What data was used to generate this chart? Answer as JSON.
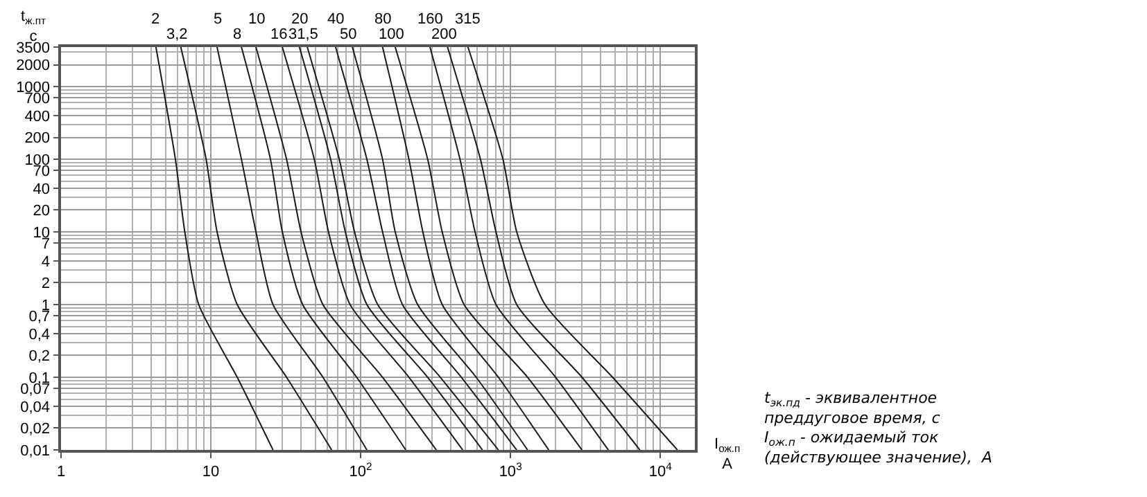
{
  "chart_data": {
    "type": "line",
    "xlabel": "I$_{ож.п}$ A",
    "ylabel": "t$_{ж.пт}$ с",
    "annotations": [
      "t$_{эк.пд}$ - эквивалентное преддуговое время, с",
      "I$_{ож.п}$ - ожидаемый ток (действующее значение),  A"
    ],
    "log": "xy",
    "grid": true,
    "legend": false,
    "marker": "none",
    "line_style": "solid",
    "xlim": [
      1,
      17000
    ],
    "xticks": [
      1,
      10,
      {
        "value": 100,
        "label": "10$^{2}$"
      },
      {
        "value": 1000,
        "label": "10$^{3}$"
      },
      {
        "value": 10000,
        "label": "10$^{4}$"
      }
    ],
    "ylim": [
      0.01,
      3500
    ],
    "yticks": [
      3500,
      2000,
      1000,
      700,
      400,
      200,
      100,
      70,
      40,
      20,
      10,
      7,
      4,
      2,
      1,
      {
        "value": 0.7,
        "label": "0,7"
      },
      {
        "value": 0.4,
        "label": "0,4"
      },
      {
        "value": 0.2,
        "label": "0,2"
      },
      {
        "value": 0.1,
        "label": "0,1"
      },
      {
        "value": 0.07,
        "label": "0,07"
      },
      {
        "value": 0.04,
        "label": "0,04"
      },
      {
        "value": 0.02,
        "label": "0,02"
      },
      {
        "value": 0.01,
        "label": "0,01"
      }
    ],
    "series": [
      {
        "name": "2",
        "color": "#1a1a1a",
        "x": [
          4.3,
          5.8,
          6.7,
          8.3,
          15,
          26
        ],
        "values": [
          3500,
          100,
          10,
          1,
          0.1,
          0.01
        ]
      },
      {
        "name": "3,2",
        "color": "#1a1a1a",
        "x": [
          6.3,
          9.3,
          11,
          15,
          32,
          64
        ],
        "values": [
          3500,
          100,
          10,
          1,
          0.1,
          0.01
        ]
      },
      {
        "name": "5",
        "color": "#1a1a1a",
        "x": [
          11,
          16,
          20,
          26,
          56,
          110
        ],
        "values": [
          3500,
          100,
          10,
          1,
          0.1,
          0.01
        ]
      },
      {
        "name": "8",
        "color": "#1a1a1a",
        "x": [
          16,
          25,
          30,
          41,
          94,
          200
        ],
        "values": [
          3500,
          100,
          10,
          1,
          0.1,
          0.01
        ]
      },
      {
        "name": "10",
        "color": "#1a1a1a",
        "x": [
          20,
          32,
          40,
          56,
          140,
          320
        ],
        "values": [
          3500,
          100,
          10,
          1,
          0.1,
          0.01
        ]
      },
      {
        "name": "16",
        "color": "#1a1a1a",
        "x": [
          30,
          49,
          61,
          85,
          210,
          480
        ],
        "values": [
          3500,
          100,
          10,
          1,
          0.1,
          0.01
        ]
      },
      {
        "name": "20",
        "color": "#1a1a1a",
        "x": [
          39,
          63,
          79,
          110,
          280,
          650
        ],
        "values": [
          3500,
          100,
          10,
          1,
          0.1,
          0.01
        ]
      },
      {
        "name": "31,5",
        "color": "#1a1a1a",
        "x": [
          44,
          72,
          91,
          130,
          340,
          830
        ],
        "values": [
          3500,
          100,
          10,
          1,
          0.1,
          0.01
        ]
      },
      {
        "name": "40",
        "color": "#1a1a1a",
        "x": [
          68,
          110,
          140,
          190,
          470,
          1100
        ],
        "values": [
          3500,
          100,
          10,
          1,
          0.1,
          0.01
        ]
      },
      {
        "name": "50",
        "color": "#1a1a1a",
        "x": [
          88,
          140,
          170,
          240,
          590,
          1300
        ],
        "values": [
          3500,
          100,
          10,
          1,
          0.1,
          0.01
        ]
      },
      {
        "name": "80",
        "color": "#1a1a1a",
        "x": [
          140,
          210,
          260,
          350,
          830,
          1800
        ],
        "values": [
          3500,
          100,
          10,
          1,
          0.1,
          0.01
        ]
      },
      {
        "name": "100",
        "color": "#1a1a1a",
        "x": [
          170,
          280,
          350,
          490,
          1300,
          3000
        ],
        "values": [
          3500,
          100,
          10,
          1,
          0.1,
          0.01
        ]
      },
      {
        "name": "160",
        "color": "#1a1a1a",
        "x": [
          290,
          460,
          580,
          800,
          2000,
          4500
        ],
        "values": [
          3500,
          100,
          10,
          1,
          0.1,
          0.01
        ]
      },
      {
        "name": "200",
        "color": "#1a1a1a",
        "x": [
          380,
          630,
          800,
          1100,
          3000,
          7300
        ],
        "values": [
          3500,
          100,
          10,
          1,
          0.1,
          0.01
        ]
      },
      {
        "name": "315",
        "color": "#1a1a1a",
        "x": [
          520,
          890,
          1100,
          1700,
          4800,
          13000
        ],
        "values": [
          3500,
          100,
          10,
          1,
          0.1,
          0.01
        ]
      }
    ]
  }
}
